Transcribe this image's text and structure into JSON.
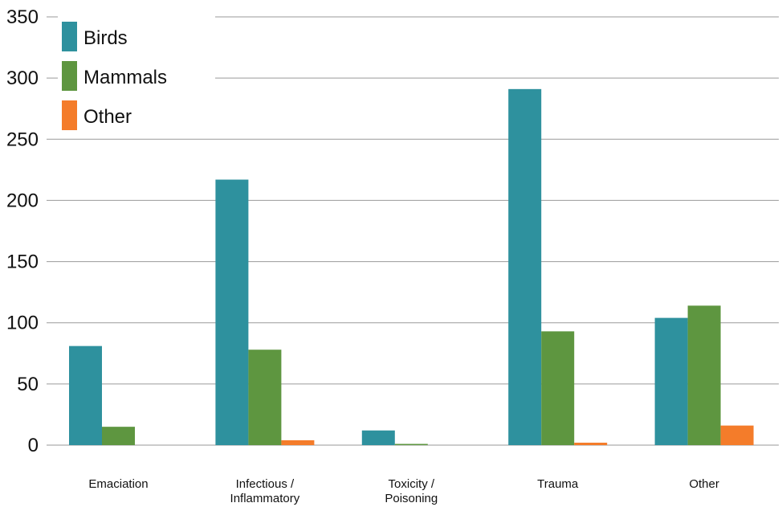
{
  "chart_data": {
    "type": "bar",
    "categories": [
      [
        "Emaciation"
      ],
      [
        "Infectious /",
        "Inflammatory"
      ],
      [
        "Toxicity /",
        "Poisoning"
      ],
      [
        "Trauma"
      ],
      [
        "Other"
      ]
    ],
    "series": [
      {
        "name": "Birds",
        "color": "#2e919e",
        "values": [
          81,
          217,
          12,
          291,
          104
        ]
      },
      {
        "name": "Mammals",
        "color": "#5e9640",
        "values": [
          15,
          78,
          1,
          93,
          114
        ]
      },
      {
        "name": "Other",
        "color": "#f47c2a",
        "values": [
          0,
          4,
          0,
          2,
          16
        ]
      }
    ],
    "ylim": [
      0,
      350
    ],
    "yticks": [
      0,
      50,
      100,
      150,
      200,
      250,
      300,
      350
    ],
    "grid": true,
    "legend": "top-left",
    "title": "",
    "xlabel": "",
    "ylabel": ""
  }
}
